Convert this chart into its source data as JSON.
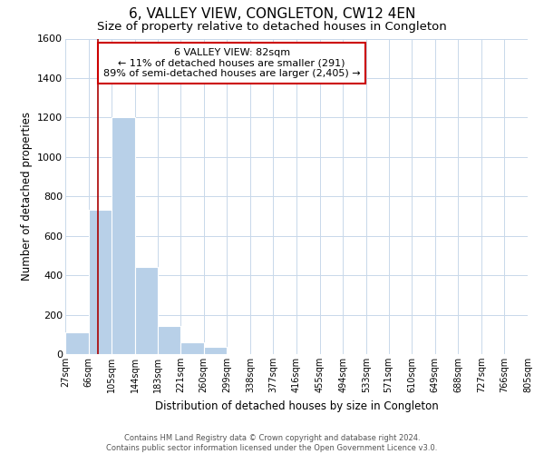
{
  "title": "6, VALLEY VIEW, CONGLETON, CW12 4EN",
  "subtitle": "Size of property relative to detached houses in Congleton",
  "xlabel": "Distribution of detached houses by size in Congleton",
  "ylabel": "Number of detached properties",
  "bar_edges": [
    27,
    66,
    105,
    144,
    183,
    221,
    260,
    299,
    338,
    377,
    416,
    455,
    494,
    533,
    571,
    610,
    649,
    688,
    727,
    766,
    805
  ],
  "bar_heights": [
    110,
    730,
    1200,
    440,
    145,
    60,
    35,
    0,
    0,
    0,
    0,
    0,
    0,
    0,
    0,
    0,
    0,
    0,
    0,
    0
  ],
  "bar_color": "#b8d0e8",
  "bar_edge_color": "#ffffff",
  "property_line_x": 82,
  "property_line_color": "#aa0000",
  "annotation_text_line1": "6 VALLEY VIEW: 82sqm",
  "annotation_text_line2": "← 11% of detached houses are smaller (291)",
  "annotation_text_line3": "89% of semi-detached houses are larger (2,405) →",
  "annotation_box_color": "#ffffff",
  "annotation_box_edgecolor": "#cc0000",
  "ylim": [
    0,
    1600
  ],
  "yticks": [
    0,
    200,
    400,
    600,
    800,
    1000,
    1200,
    1400,
    1600
  ],
  "tick_labels": [
    "27sqm",
    "66sqm",
    "105sqm",
    "144sqm",
    "183sqm",
    "221sqm",
    "260sqm",
    "299sqm",
    "338sqm",
    "377sqm",
    "416sqm",
    "455sqm",
    "494sqm",
    "533sqm",
    "571sqm",
    "610sqm",
    "649sqm",
    "688sqm",
    "727sqm",
    "766sqm",
    "805sqm"
  ],
  "footer_line1": "Contains HM Land Registry data © Crown copyright and database right 2024.",
  "footer_line2": "Contains public sector information licensed under the Open Government Licence v3.0.",
  "background_color": "#ffffff",
  "grid_color": "#c8d8ea",
  "title_fontsize": 11,
  "subtitle_fontsize": 9.5,
  "ylabel_fontsize": 8.5,
  "xlabel_fontsize": 8.5,
  "ytick_fontsize": 8,
  "xtick_fontsize": 7,
  "annotation_fontsize": 8,
  "footer_fontsize": 6
}
